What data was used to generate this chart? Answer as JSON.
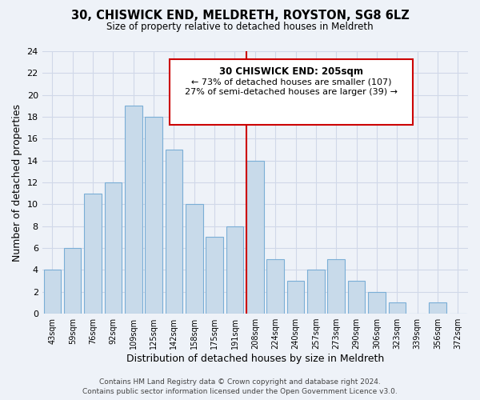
{
  "title": "30, CHISWICK END, MELDRETH, ROYSTON, SG8 6LZ",
  "subtitle": "Size of property relative to detached houses in Meldreth",
  "xlabel": "Distribution of detached houses by size in Meldreth",
  "ylabel": "Number of detached properties",
  "bar_labels": [
    "43sqm",
    "59sqm",
    "76sqm",
    "92sqm",
    "109sqm",
    "125sqm",
    "142sqm",
    "158sqm",
    "175sqm",
    "191sqm",
    "208sqm",
    "224sqm",
    "240sqm",
    "257sqm",
    "273sqm",
    "290sqm",
    "306sqm",
    "323sqm",
    "339sqm",
    "356sqm",
    "372sqm"
  ],
  "bar_values": [
    4,
    6,
    11,
    12,
    19,
    18,
    15,
    10,
    7,
    8,
    14,
    5,
    3,
    4,
    5,
    3,
    2,
    1,
    0,
    1,
    0
  ],
  "bar_color": "#c8daea",
  "bar_edge_color": "#7aaed6",
  "vline_color": "#cc0000",
  "ylim": [
    0,
    24
  ],
  "yticks": [
    0,
    2,
    4,
    6,
    8,
    10,
    12,
    14,
    16,
    18,
    20,
    22,
    24
  ],
  "annotation_title": "30 CHISWICK END: 205sqm",
  "annotation_line1": "← 73% of detached houses are smaller (107)",
  "annotation_line2": "27% of semi-detached houses are larger (39) →",
  "annotation_box_color": "#ffffff",
  "annotation_border_color": "#cc0000",
  "footer_line1": "Contains HM Land Registry data © Crown copyright and database right 2024.",
  "footer_line2": "Contains public sector information licensed under the Open Government Licence v3.0.",
  "grid_color": "#d0d8e8",
  "background_color": "#eef2f8"
}
